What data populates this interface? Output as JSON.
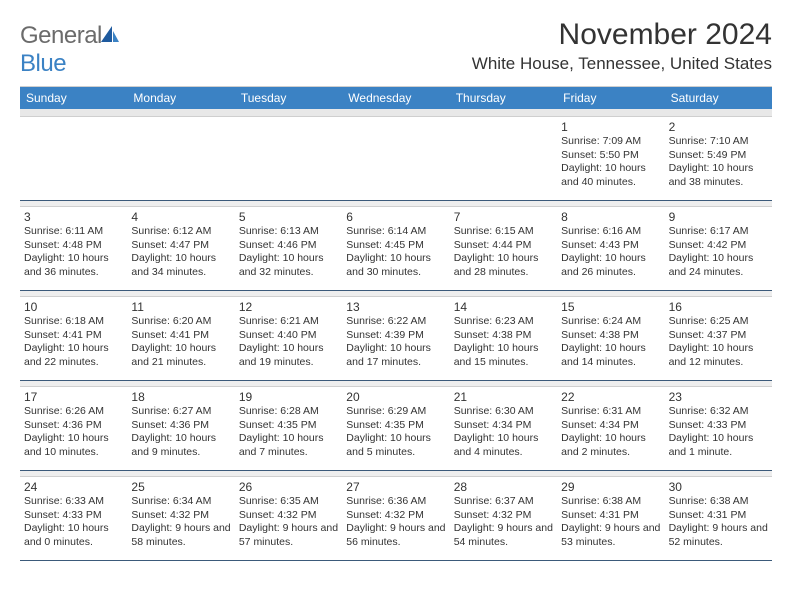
{
  "logo": {
    "word1": "General",
    "word2": "Blue"
  },
  "title": "November 2024",
  "location": "White House, Tennessee, United States",
  "colors": {
    "brand_blue": "#3b82c4",
    "header_text": "#ffffff",
    "divider": "#3b5a7a",
    "spacer_bg": "#eeeeee",
    "text": "#333333"
  },
  "day_headers": [
    "Sunday",
    "Monday",
    "Tuesday",
    "Wednesday",
    "Thursday",
    "Friday",
    "Saturday"
  ],
  "weeks": [
    [
      null,
      null,
      null,
      null,
      null,
      {
        "n": "1",
        "sr": "7:09 AM",
        "ss": "5:50 PM",
        "dl": "10 hours and 40 minutes."
      },
      {
        "n": "2",
        "sr": "7:10 AM",
        "ss": "5:49 PM",
        "dl": "10 hours and 38 minutes."
      }
    ],
    [
      {
        "n": "3",
        "sr": "6:11 AM",
        "ss": "4:48 PM",
        "dl": "10 hours and 36 minutes."
      },
      {
        "n": "4",
        "sr": "6:12 AM",
        "ss": "4:47 PM",
        "dl": "10 hours and 34 minutes."
      },
      {
        "n": "5",
        "sr": "6:13 AM",
        "ss": "4:46 PM",
        "dl": "10 hours and 32 minutes."
      },
      {
        "n": "6",
        "sr": "6:14 AM",
        "ss": "4:45 PM",
        "dl": "10 hours and 30 minutes."
      },
      {
        "n": "7",
        "sr": "6:15 AM",
        "ss": "4:44 PM",
        "dl": "10 hours and 28 minutes."
      },
      {
        "n": "8",
        "sr": "6:16 AM",
        "ss": "4:43 PM",
        "dl": "10 hours and 26 minutes."
      },
      {
        "n": "9",
        "sr": "6:17 AM",
        "ss": "4:42 PM",
        "dl": "10 hours and 24 minutes."
      }
    ],
    [
      {
        "n": "10",
        "sr": "6:18 AM",
        "ss": "4:41 PM",
        "dl": "10 hours and 22 minutes."
      },
      {
        "n": "11",
        "sr": "6:20 AM",
        "ss": "4:41 PM",
        "dl": "10 hours and 21 minutes."
      },
      {
        "n": "12",
        "sr": "6:21 AM",
        "ss": "4:40 PM",
        "dl": "10 hours and 19 minutes."
      },
      {
        "n": "13",
        "sr": "6:22 AM",
        "ss": "4:39 PM",
        "dl": "10 hours and 17 minutes."
      },
      {
        "n": "14",
        "sr": "6:23 AM",
        "ss": "4:38 PM",
        "dl": "10 hours and 15 minutes."
      },
      {
        "n": "15",
        "sr": "6:24 AM",
        "ss": "4:38 PM",
        "dl": "10 hours and 14 minutes."
      },
      {
        "n": "16",
        "sr": "6:25 AM",
        "ss": "4:37 PM",
        "dl": "10 hours and 12 minutes."
      }
    ],
    [
      {
        "n": "17",
        "sr": "6:26 AM",
        "ss": "4:36 PM",
        "dl": "10 hours and 10 minutes."
      },
      {
        "n": "18",
        "sr": "6:27 AM",
        "ss": "4:36 PM",
        "dl": "10 hours and 9 minutes."
      },
      {
        "n": "19",
        "sr": "6:28 AM",
        "ss": "4:35 PM",
        "dl": "10 hours and 7 minutes."
      },
      {
        "n": "20",
        "sr": "6:29 AM",
        "ss": "4:35 PM",
        "dl": "10 hours and 5 minutes."
      },
      {
        "n": "21",
        "sr": "6:30 AM",
        "ss": "4:34 PM",
        "dl": "10 hours and 4 minutes."
      },
      {
        "n": "22",
        "sr": "6:31 AM",
        "ss": "4:34 PM",
        "dl": "10 hours and 2 minutes."
      },
      {
        "n": "23",
        "sr": "6:32 AM",
        "ss": "4:33 PM",
        "dl": "10 hours and 1 minute."
      }
    ],
    [
      {
        "n": "24",
        "sr": "6:33 AM",
        "ss": "4:33 PM",
        "dl": "10 hours and 0 minutes."
      },
      {
        "n": "25",
        "sr": "6:34 AM",
        "ss": "4:32 PM",
        "dl": "9 hours and 58 minutes."
      },
      {
        "n": "26",
        "sr": "6:35 AM",
        "ss": "4:32 PM",
        "dl": "9 hours and 57 minutes."
      },
      {
        "n": "27",
        "sr": "6:36 AM",
        "ss": "4:32 PM",
        "dl": "9 hours and 56 minutes."
      },
      {
        "n": "28",
        "sr": "6:37 AM",
        "ss": "4:32 PM",
        "dl": "9 hours and 54 minutes."
      },
      {
        "n": "29",
        "sr": "6:38 AM",
        "ss": "4:31 PM",
        "dl": "9 hours and 53 minutes."
      },
      {
        "n": "30",
        "sr": "6:38 AM",
        "ss": "4:31 PM",
        "dl": "9 hours and 52 minutes."
      }
    ]
  ],
  "labels": {
    "sunrise": "Sunrise:",
    "sunset": "Sunset:",
    "daylight": "Daylight:"
  }
}
